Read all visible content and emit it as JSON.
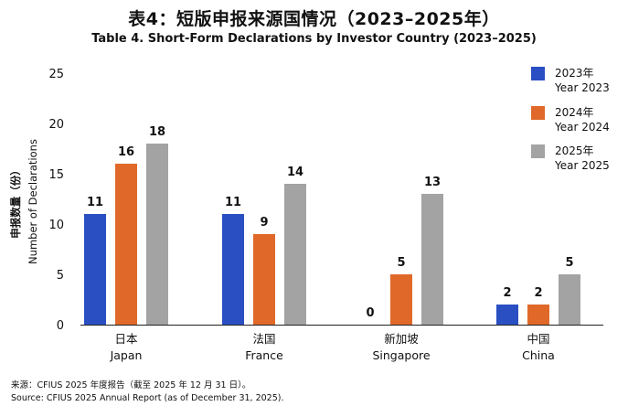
{
  "title": "表4：短版申报来源国情况（2023–2025年）",
  "subtitle": "Table 4. Short-Form Declarations by Investor Country (2023–2025)",
  "source_cn": "来源：CFIUS 2025 年度报告（截至 2025 年 12 月 31 日）。",
  "source_en": "Source: CFIUS 2025 Annual Report (as of December 31, 2025).",
  "chart_data": {
    "type": "bar",
    "ylabel_cn": "申报数量（份）",
    "ylabel_en": "Number of Declarations",
    "ylim": [
      0,
      25
    ],
    "yticks": [
      0,
      5,
      10,
      15,
      20,
      25
    ],
    "grid": false,
    "legend_position": "top-right",
    "categories": [
      {
        "cn": "日本",
        "en": "Japan"
      },
      {
        "cn": "法国",
        "en": "France"
      },
      {
        "cn": "新加坡",
        "en": "Singapore"
      },
      {
        "cn": "中国",
        "en": "China"
      }
    ],
    "series": [
      {
        "name_cn": "2023年",
        "name_en": "Year 2023",
        "color": "#2a4fc2",
        "values": [
          11,
          11,
          0,
          2
        ]
      },
      {
        "name_cn": "2024年",
        "name_en": "Year 2024",
        "color": "#e0692a",
        "values": [
          16,
          9,
          5,
          2
        ]
      },
      {
        "name_cn": "2025年",
        "name_en": "Year 2025",
        "color": "#a3a3a3",
        "values": [
          18,
          14,
          13,
          5
        ]
      }
    ]
  }
}
